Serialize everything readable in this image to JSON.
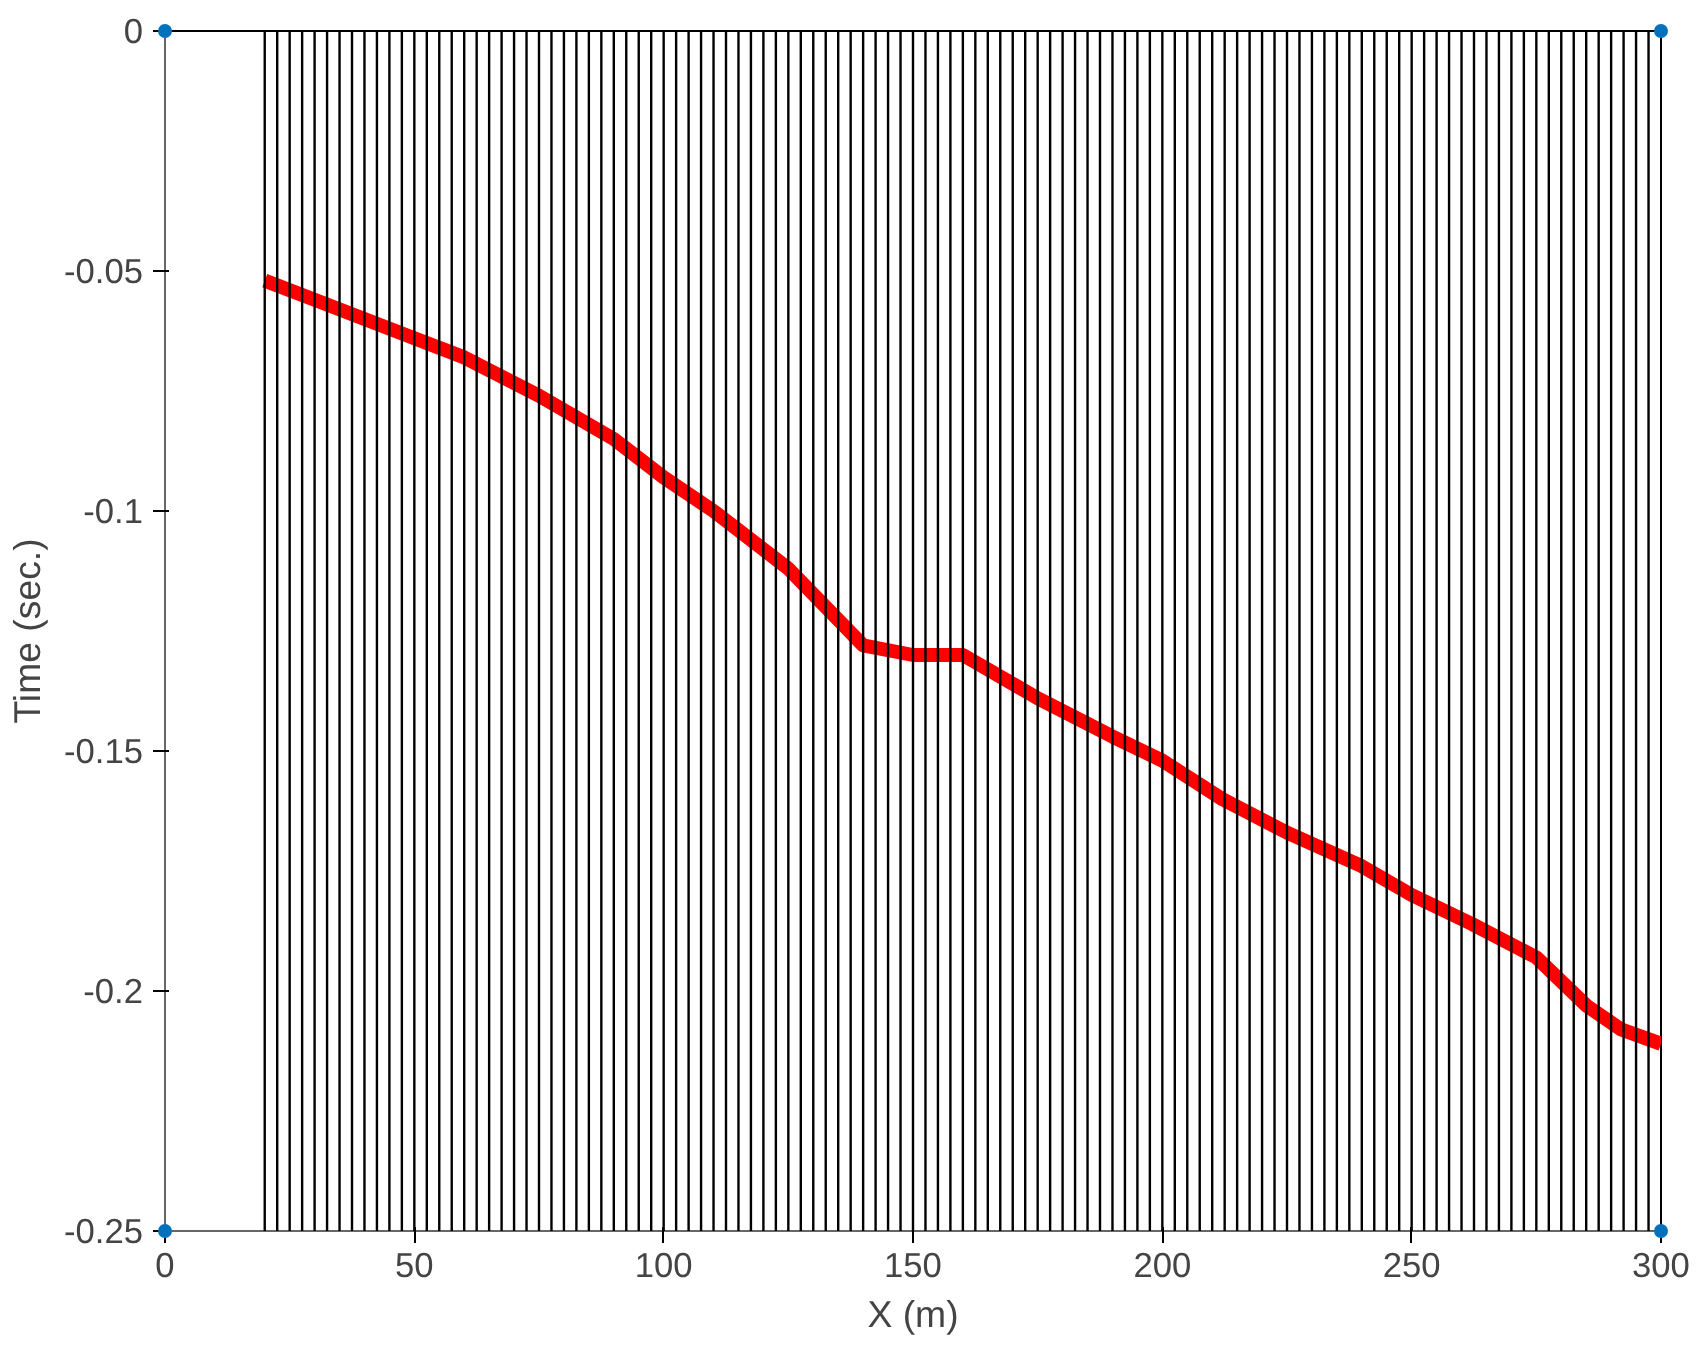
{
  "chart_data": {
    "type": "line",
    "xlabel": "X (m)",
    "ylabel": "Time (sec.)",
    "xlim": [
      0,
      300
    ],
    "ylim": [
      -0.25,
      0
    ],
    "xticks": [
      0,
      50,
      100,
      150,
      200,
      250,
      300
    ],
    "yticks": [
      -0.25,
      -0.2,
      -0.15,
      -0.1,
      -0.05,
      0
    ],
    "grid": false,
    "series": [
      {
        "color": "#ff0000",
        "x": [
          20,
          30,
          40,
          50,
          60,
          75,
          90,
          100,
          110,
          125,
          140,
          150,
          160,
          175,
          190,
          200,
          212,
          225,
          240,
          250,
          262,
          275,
          285,
          292,
          300
        ],
        "values": [
          -0.052,
          -0.056,
          -0.06,
          -0.064,
          -0.068,
          -0.076,
          -0.085,
          -0.093,
          -0.1,
          -0.112,
          -0.128,
          -0.13,
          -0.13,
          -0.139,
          -0.147,
          -0.152,
          -0.16,
          -0.167,
          -0.174,
          -0.18,
          -0.186,
          -0.193,
          -0.203,
          -0.208,
          -0.211
        ]
      },
      {
        "type": "scatter",
        "color": "#0072bd",
        "x": [
          0,
          300,
          0,
          300
        ],
        "values": [
          0,
          0,
          -0.25,
          -0.25
        ]
      }
    ],
    "ref_lines": [
      {
        "axis": "x",
        "value": 20
      },
      {
        "axis": "x",
        "value": 22.5
      },
      {
        "axis": "x",
        "value": 25
      },
      {
        "axis": "x",
        "value": 27.5
      },
      {
        "axis": "x",
        "value": 30
      },
      {
        "axis": "x",
        "value": 32.5
      },
      {
        "axis": "x",
        "value": 35
      },
      {
        "axis": "x",
        "value": 37.5
      },
      {
        "axis": "x",
        "value": 40
      },
      {
        "axis": "x",
        "value": 42.5
      },
      {
        "axis": "x",
        "value": 45
      },
      {
        "axis": "x",
        "value": 47.5
      },
      {
        "axis": "x",
        "value": 50
      },
      {
        "axis": "x",
        "value": 52.5
      },
      {
        "axis": "x",
        "value": 55
      },
      {
        "axis": "x",
        "value": 57.5
      },
      {
        "axis": "x",
        "value": 60
      },
      {
        "axis": "x",
        "value": 62.5
      },
      {
        "axis": "x",
        "value": 65
      },
      {
        "axis": "x",
        "value": 67.5
      },
      {
        "axis": "x",
        "value": 70
      },
      {
        "axis": "x",
        "value": 72.5
      },
      {
        "axis": "x",
        "value": 75
      },
      {
        "axis": "x",
        "value": 77.5
      },
      {
        "axis": "x",
        "value": 80
      },
      {
        "axis": "x",
        "value": 82.5
      },
      {
        "axis": "x",
        "value": 85
      },
      {
        "axis": "x",
        "value": 87.5
      },
      {
        "axis": "x",
        "value": 90
      },
      {
        "axis": "x",
        "value": 92.5
      },
      {
        "axis": "x",
        "value": 95
      },
      {
        "axis": "x",
        "value": 97.5
      },
      {
        "axis": "x",
        "value": 100
      },
      {
        "axis": "x",
        "value": 102.5
      },
      {
        "axis": "x",
        "value": 105
      },
      {
        "axis": "x",
        "value": 107.5
      },
      {
        "axis": "x",
        "value": 110
      },
      {
        "axis": "x",
        "value": 112.5
      },
      {
        "axis": "x",
        "value": 115
      },
      {
        "axis": "x",
        "value": 117.5
      },
      {
        "axis": "x",
        "value": 120
      },
      {
        "axis": "x",
        "value": 122.5
      },
      {
        "axis": "x",
        "value": 125
      },
      {
        "axis": "x",
        "value": 127.5
      },
      {
        "axis": "x",
        "value": 130
      },
      {
        "axis": "x",
        "value": 132.5
      },
      {
        "axis": "x",
        "value": 135
      },
      {
        "axis": "x",
        "value": 137.5
      },
      {
        "axis": "x",
        "value": 140
      },
      {
        "axis": "x",
        "value": 142.5
      },
      {
        "axis": "x",
        "value": 145
      },
      {
        "axis": "x",
        "value": 147.5
      },
      {
        "axis": "x",
        "value": 150
      },
      {
        "axis": "x",
        "value": 152.5
      },
      {
        "axis": "x",
        "value": 155
      },
      {
        "axis": "x",
        "value": 157.5
      },
      {
        "axis": "x",
        "value": 160
      },
      {
        "axis": "x",
        "value": 162.5
      },
      {
        "axis": "x",
        "value": 165
      },
      {
        "axis": "x",
        "value": 167.5
      },
      {
        "axis": "x",
        "value": 170
      },
      {
        "axis": "x",
        "value": 172.5
      },
      {
        "axis": "x",
        "value": 175
      },
      {
        "axis": "x",
        "value": 177.5
      },
      {
        "axis": "x",
        "value": 180
      },
      {
        "axis": "x",
        "value": 182.5
      },
      {
        "axis": "x",
        "value": 185
      },
      {
        "axis": "x",
        "value": 187.5
      },
      {
        "axis": "x",
        "value": 190
      },
      {
        "axis": "x",
        "value": 192.5
      },
      {
        "axis": "x",
        "value": 195
      },
      {
        "axis": "x",
        "value": 197.5
      },
      {
        "axis": "x",
        "value": 200
      },
      {
        "axis": "x",
        "value": 202.5
      },
      {
        "axis": "x",
        "value": 205
      },
      {
        "axis": "x",
        "value": 207.5
      },
      {
        "axis": "x",
        "value": 210
      },
      {
        "axis": "x",
        "value": 212.5
      },
      {
        "axis": "x",
        "value": 215
      },
      {
        "axis": "x",
        "value": 217.5
      },
      {
        "axis": "x",
        "value": 220
      },
      {
        "axis": "x",
        "value": 222.5
      },
      {
        "axis": "x",
        "value": 225
      },
      {
        "axis": "x",
        "value": 227.5
      },
      {
        "axis": "x",
        "value": 230
      },
      {
        "axis": "x",
        "value": 232.5
      },
      {
        "axis": "x",
        "value": 235
      },
      {
        "axis": "x",
        "value": 237.5
      },
      {
        "axis": "x",
        "value": 240
      },
      {
        "axis": "x",
        "value": 242.5
      },
      {
        "axis": "x",
        "value": 245
      },
      {
        "axis": "x",
        "value": 247.5
      },
      {
        "axis": "x",
        "value": 250
      },
      {
        "axis": "x",
        "value": 252.5
      },
      {
        "axis": "x",
        "value": 255
      },
      {
        "axis": "x",
        "value": 257.5
      },
      {
        "axis": "x",
        "value": 260
      },
      {
        "axis": "x",
        "value": 262.5
      },
      {
        "axis": "x",
        "value": 265
      },
      {
        "axis": "x",
        "value": 267.5
      },
      {
        "axis": "x",
        "value": 270
      },
      {
        "axis": "x",
        "value": 272.5
      },
      {
        "axis": "x",
        "value": 275
      },
      {
        "axis": "x",
        "value": 277.5
      },
      {
        "axis": "x",
        "value": 280
      },
      {
        "axis": "x",
        "value": 282.5
      },
      {
        "axis": "x",
        "value": 285
      },
      {
        "axis": "x",
        "value": 287.5
      },
      {
        "axis": "x",
        "value": 290
      },
      {
        "axis": "x",
        "value": 292.5
      },
      {
        "axis": "x",
        "value": 295
      },
      {
        "axis": "x",
        "value": 297.5
      }
    ]
  }
}
